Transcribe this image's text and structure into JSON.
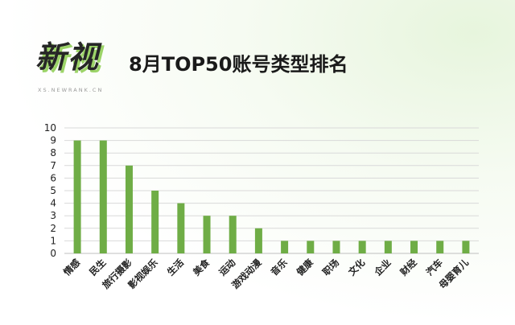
{
  "header": {
    "brand": "新视",
    "brand_url": "XS.NEWRANK.CN",
    "title": "8月TOP50账号类型排名"
  },
  "colors": {
    "bar": "#6fad46",
    "grid": "#d9d9d9",
    "axis": "#bfbfbf",
    "brand_shadow": "#9cd468"
  },
  "chart_data": {
    "type": "bar",
    "title": "8月TOP50账号类型排名",
    "xlabel": "",
    "ylabel": "",
    "categories": [
      "情感",
      "民生",
      "旅行摄影",
      "影视娱乐",
      "生活",
      "美食",
      "运动",
      "游戏动漫",
      "音乐",
      "健康",
      "职场",
      "文化",
      "企业",
      "财经",
      "汽车",
      "母婴育儿"
    ],
    "values": [
      9,
      9,
      7,
      5,
      4,
      3,
      3,
      2,
      1,
      1,
      1,
      1,
      1,
      1,
      1,
      1
    ],
    "ylim": [
      0,
      10
    ],
    "yticks": [
      0,
      1,
      2,
      3,
      4,
      5,
      6,
      7,
      8,
      9,
      10
    ],
    "grid": true,
    "legend": "none"
  }
}
